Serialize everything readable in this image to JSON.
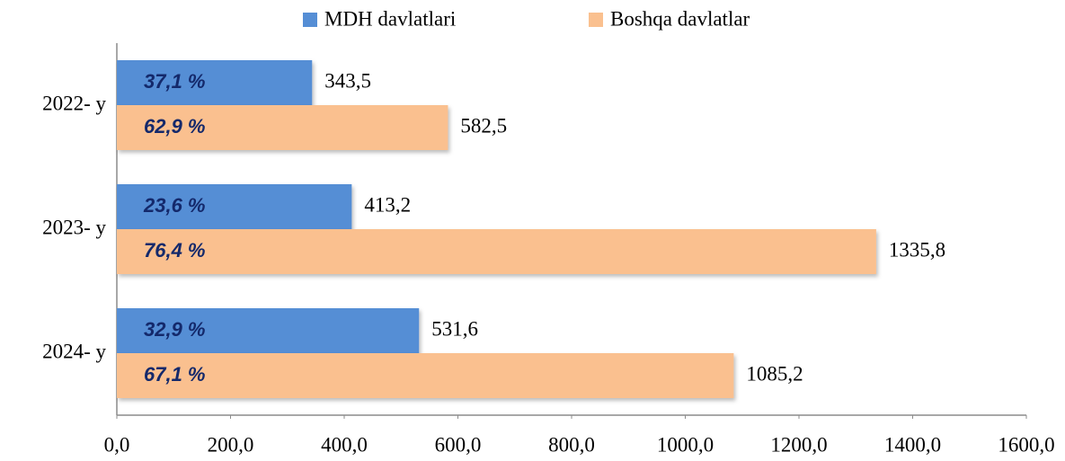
{
  "chart_data": {
    "type": "bar",
    "orientation": "horizontal",
    "categories": [
      "2022- y",
      "2023- y",
      "2024- y"
    ],
    "series": [
      {
        "name": "MDH davlatlari",
        "color": "#558ed5",
        "values": [
          343.5,
          413.2,
          531.6
        ],
        "value_labels": [
          "343,5",
          "413,2",
          "531,6"
        ],
        "share_labels": [
          "37,1 %",
          "23,6 %",
          "32,9 %"
        ]
      },
      {
        "name": "Boshqa davlatlar",
        "color": "#fac08f",
        "values": [
          582.5,
          1335.8,
          1085.2
        ],
        "value_labels": [
          "582,5",
          "1335,8",
          "1085,2"
        ],
        "share_labels": [
          "62,9 %",
          "76,4 %",
          "67,1 %"
        ]
      }
    ],
    "xlim": [
      0,
      1600
    ],
    "xticks": [
      {
        "value": 0,
        "label": "0,0"
      },
      {
        "value": 200,
        "label": "200,0"
      },
      {
        "value": 400,
        "label": "400,0"
      },
      {
        "value": 600,
        "label": "600,0"
      },
      {
        "value": 800,
        "label": "800,0"
      },
      {
        "value": 1000,
        "label": "1000,0"
      },
      {
        "value": 1200,
        "label": "1200,0"
      },
      {
        "value": 1400,
        "label": "1400,0"
      },
      {
        "value": 1600,
        "label": "1600,0"
      }
    ],
    "grid": false,
    "legend": "top"
  }
}
